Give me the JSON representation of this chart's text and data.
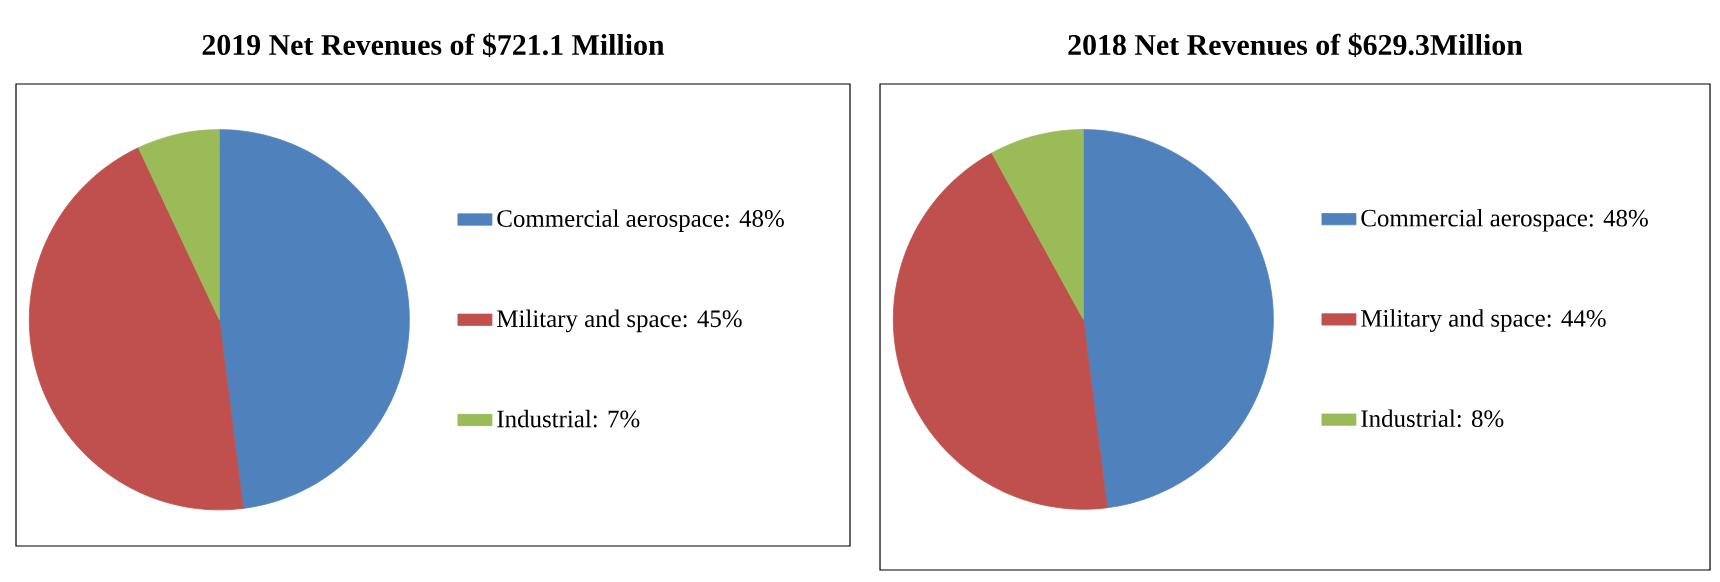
{
  "chart_data": [
    {
      "type": "pie",
      "title": "2019 Net Revenues of $721.1 Million",
      "categories": [
        "Commercial aerospace: 48%",
        "Military and space: 45%",
        "Industrial: 7%"
      ],
      "values": [
        48,
        45,
        7
      ],
      "colors": [
        "#4f81bd",
        "#c0504d",
        "#9bbb59"
      ],
      "legend": "right"
    },
    {
      "type": "pie",
      "title": "2018 Net Revenues of $629.3Million",
      "categories": [
        "Commercial aerospace: 48%",
        "Military and space: 44%",
        "Industrial: 8%"
      ],
      "values": [
        48,
        44,
        8
      ],
      "colors": [
        "#4f81bd",
        "#c0504d",
        "#9bbb59"
      ],
      "legend": "right"
    }
  ]
}
